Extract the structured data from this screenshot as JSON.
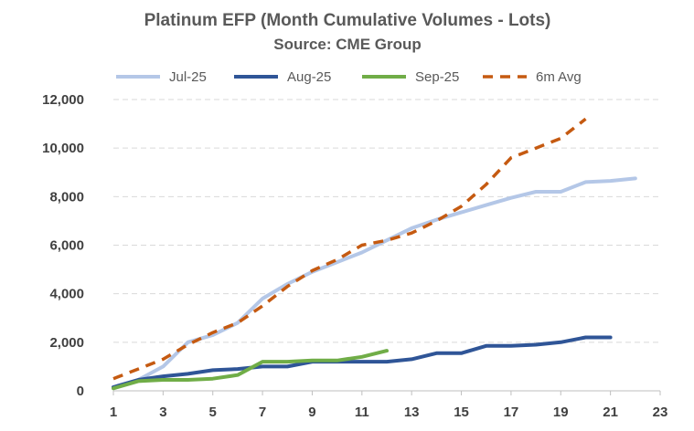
{
  "chart_data": {
    "type": "line",
    "title": "Platinum EFP (Month Cumulative Volumes - Lots)",
    "subtitle": "Source: CME Group",
    "xlabel": "",
    "ylabel": "",
    "xlim": [
      1,
      23
    ],
    "ylim": [
      0,
      12000
    ],
    "x_ticks": [
      1,
      3,
      5,
      7,
      9,
      11,
      13,
      15,
      17,
      19,
      21,
      23
    ],
    "y_ticks": [
      0,
      2000,
      4000,
      6000,
      8000,
      10000,
      12000
    ],
    "y_tick_labels": [
      "0",
      "2,000",
      "4,000",
      "6,000",
      "8,000",
      "10,000",
      "12,000"
    ],
    "grid": "horizontal dashed",
    "legend_position": "top",
    "series": [
      {
        "name": "Jul-25",
        "color": "#b4c7e7",
        "style": "solid",
        "x": [
          1,
          2,
          3,
          4,
          5,
          6,
          7,
          8,
          9,
          10,
          11,
          12,
          13,
          14,
          15,
          16,
          17,
          18,
          19,
          20,
          21,
          22
        ],
        "values": [
          150,
          450,
          1000,
          2000,
          2300,
          2800,
          3800,
          4400,
          4900,
          5300,
          5700,
          6200,
          6700,
          7050,
          7350,
          7650,
          7950,
          8200,
          8200,
          8600,
          8650,
          8750
        ]
      },
      {
        "name": "Aug-25",
        "color": "#2f5597",
        "style": "solid",
        "x": [
          1,
          2,
          3,
          4,
          5,
          6,
          7,
          8,
          9,
          10,
          11,
          12,
          13,
          14,
          15,
          16,
          17,
          18,
          19,
          20,
          21
        ],
        "values": [
          150,
          450,
          600,
          700,
          850,
          900,
          1000,
          1000,
          1200,
          1200,
          1200,
          1200,
          1300,
          1550,
          1550,
          1850,
          1850,
          1900,
          2000,
          2200,
          2200
        ]
      },
      {
        "name": "Sep-25",
        "color": "#70ad47",
        "style": "solid",
        "x": [
          1,
          2,
          3,
          4,
          5,
          6,
          7,
          8,
          9,
          10,
          11,
          12
        ],
        "values": [
          100,
          400,
          450,
          450,
          500,
          650,
          1200,
          1200,
          1250,
          1250,
          1400,
          1650
        ]
      },
      {
        "name": "6m Avg",
        "color": "#c55a11",
        "style": "dashed",
        "x": [
          1,
          2,
          3,
          4,
          5,
          6,
          7,
          8,
          9,
          10,
          11,
          12,
          13,
          14,
          15,
          16,
          17,
          18,
          19,
          20
        ],
        "values": [
          500,
          900,
          1300,
          1900,
          2400,
          2800,
          3500,
          4300,
          4950,
          5400,
          6000,
          6200,
          6500,
          7000,
          7600,
          8500,
          9600,
          10000,
          10400,
          11200
        ]
      }
    ]
  }
}
